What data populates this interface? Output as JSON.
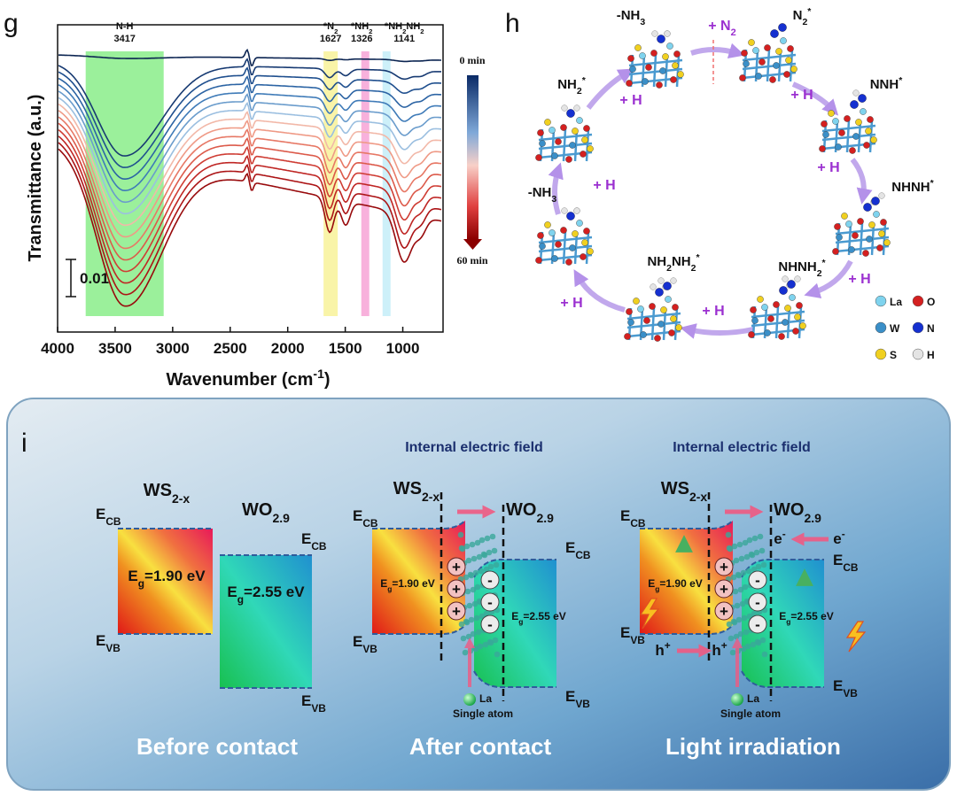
{
  "panel_g": {
    "label": "g",
    "y_label": "Transmittance (a.u.)",
    "x_label": [
      "Wavenumber (cm",
      "-1",
      ")"
    ],
    "xlim": [
      4000,
      650
    ],
    "xticks": [
      4000,
      3500,
      3000,
      2500,
      2000,
      1500,
      1000
    ],
    "scale_bar": "0.01",
    "colorbar": [
      "0 min",
      "60 min"
    ],
    "bands": [
      {
        "label": [
          "N-H"
        ],
        "wavenumber": 3417,
        "color": "#90ee90"
      },
      {
        "label": [
          "*N",
          "2"
        ],
        "wavenumber": 1627,
        "color": "#f8f39e"
      },
      {
        "label": [
          "*NH",
          "2"
        ],
        "wavenumber": 1326,
        "color": "#f7a8d8"
      },
      {
        "label": [
          "*NH",
          "2",
          "NH",
          "2"
        ],
        "wavenumber": 1141,
        "color": "#c8eef8"
      }
    ]
  },
  "panel_h": {
    "label": "h",
    "species": [
      {
        "label": [
          "-NH",
          "3"
        ]
      },
      {
        "label": [
          "N",
          "2",
          "*"
        ]
      },
      {
        "label": [
          "NNH",
          "*"
        ]
      },
      {
        "label": [
          "NHNH",
          "*"
        ]
      },
      {
        "label": [
          "NHNH",
          "2",
          "*"
        ]
      },
      {
        "label": [
          "NH",
          "2",
          "NH",
          "2",
          "*"
        ]
      },
      {
        "label": [
          "-NH",
          "3"
        ]
      },
      {
        "label": [
          "NH",
          "2",
          "*"
        ]
      }
    ],
    "steps": [
      [
        "+ N",
        "2"
      ],
      [
        "+ H"
      ],
      [
        "+ H"
      ],
      [
        "+ H"
      ],
      [
        "+ H"
      ],
      [
        "+ H"
      ],
      [
        "+ H"
      ],
      [
        "+ H"
      ]
    ],
    "legend": [
      {
        "name": "La",
        "color": "#7fd3ee"
      },
      {
        "name": "O",
        "color": "#d42020"
      },
      {
        "name": "W",
        "color": "#3a8fc8"
      },
      {
        "name": "N",
        "color": "#1530d0"
      },
      {
        "name": "S",
        "color": "#f0d020"
      },
      {
        "name": "H",
        "color": "#e4e4e4"
      }
    ]
  },
  "panel_i": {
    "label": "i",
    "charges": [
      "+",
      "-"
    ],
    "stages": [
      {
        "title": "Before contact",
        "ws": [
          "WS",
          "2-x"
        ],
        "wo": [
          "WO",
          "2.9"
        ],
        "ws_cb": [
          "E",
          "CB"
        ],
        "ws_vb": [
          "E",
          "VB"
        ],
        "wo_cb": [
          "E",
          "CB"
        ],
        "wo_vb": [
          "E",
          "VB"
        ],
        "ws_gap": [
          "E",
          "g",
          "=1.90 eV"
        ],
        "wo_gap": [
          "E",
          "g",
          "=2.55 eV"
        ]
      },
      {
        "title": "After contact",
        "field": "Internal electric field",
        "ws": [
          "WS",
          "2-x"
        ],
        "wo": [
          "WO",
          "2.9"
        ],
        "ws_cb": [
          "E",
          "CB"
        ],
        "ws_vb": [
          "E",
          "VB"
        ],
        "wo_cb": [
          "E",
          "CB"
        ],
        "wo_vb": [
          "E",
          "VB"
        ],
        "ws_gap": [
          "E",
          "g",
          "=1.90 eV"
        ],
        "wo_gap": [
          "E",
          "g",
          "=2.55 eV"
        ],
        "atom": "La",
        "atom_note": "Single atom"
      },
      {
        "title": "Light irradiation",
        "field": "Internal electric field",
        "ws": [
          "WS",
          "2-x"
        ],
        "wo": [
          "WO",
          "2.9"
        ],
        "ws_cb": [
          "E",
          "CB"
        ],
        "ws_vb": [
          "E",
          "VB"
        ],
        "wo_cb": [
          "E",
          "CB"
        ],
        "wo_vb": [
          "E",
          "VB"
        ],
        "ws_gap": [
          "E",
          "g",
          "=1.90 eV"
        ],
        "wo_gap": [
          "E",
          "g",
          "=2.55 eV"
        ],
        "atom": "La",
        "atom_note": "Single atom",
        "electron": [
          "e",
          "-"
        ],
        "hole": [
          "h",
          "+"
        ]
      }
    ]
  }
}
